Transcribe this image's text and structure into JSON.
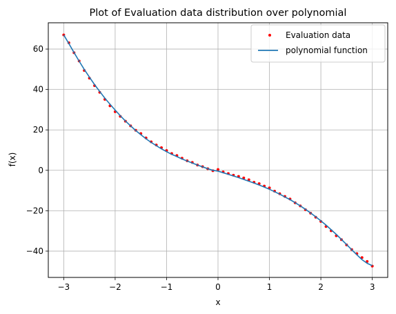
{
  "chart_data": {
    "type": "scatter",
    "title": "Plot of Evaluation data distribution over polynomial",
    "xlabel": "x",
    "ylabel": "f(x)",
    "xlim": [
      -3.3,
      3.3
    ],
    "ylim": [
      -53,
      73
    ],
    "xticks": [
      -3,
      -2,
      -1,
      0,
      1,
      2,
      3
    ],
    "xtick_labels": [
      "−3",
      "−2",
      "−1",
      "0",
      "1",
      "2",
      "3"
    ],
    "yticks": [
      -40,
      -20,
      0,
      20,
      40,
      60
    ],
    "ytick_labels": [
      "−40",
      "−20",
      "0",
      "20",
      "40",
      "60"
    ],
    "grid": true,
    "legend_position": "top-right",
    "series": [
      {
        "name": "Evaluation data",
        "kind": "scatter",
        "color": "#ff0000",
        "x": [
          -3.0,
          -2.9,
          -2.8,
          -2.7,
          -2.6,
          -2.5,
          -2.4,
          -2.3,
          -2.2,
          -2.1,
          -2.0,
          -1.9,
          -1.8,
          -1.7,
          -1.6,
          -1.5,
          -1.4,
          -1.3,
          -1.2,
          -1.1,
          -1.0,
          -0.9,
          -0.8,
          -0.7,
          -0.6,
          -0.5,
          -0.4,
          -0.3,
          -0.2,
          -0.1,
          0.0,
          0.1,
          0.2,
          0.3,
          0.4,
          0.5,
          0.6,
          0.7,
          0.8,
          0.9,
          1.0,
          1.1,
          1.2,
          1.3,
          1.4,
          1.5,
          1.6,
          1.7,
          1.8,
          1.9,
          2.0,
          2.1,
          2.2,
          2.3,
          2.4,
          2.5,
          2.6,
          2.7,
          2.8,
          2.9,
          3.0
        ],
        "y": [
          67.0,
          63.1,
          58.2,
          54.1,
          49.4,
          45.6,
          41.9,
          38.6,
          35.1,
          31.9,
          29.0,
          26.7,
          24.3,
          22.0,
          19.8,
          18.2,
          16.0,
          14.1,
          12.5,
          11.2,
          9.8,
          8.3,
          7.3,
          6.0,
          4.7,
          3.9,
          2.6,
          1.8,
          0.8,
          -0.2,
          0.4,
          -0.8,
          -1.6,
          -2.4,
          -3.0,
          -3.8,
          -4.7,
          -5.9,
          -6.6,
          -7.8,
          -8.7,
          -10.3,
          -11.6,
          -12.9,
          -14.2,
          -16.1,
          -17.6,
          -19.5,
          -21.2,
          -23.2,
          -25.3,
          -27.8,
          -29.9,
          -32.4,
          -34.3,
          -36.9,
          -39.2,
          -41.2,
          -43.2,
          -45.1,
          -47.4
        ]
      },
      {
        "name": "polynomial function",
        "kind": "line",
        "color": "#1f77b4",
        "x": [
          -3.0,
          -2.9,
          -2.8,
          -2.7,
          -2.6,
          -2.5,
          -2.4,
          -2.3,
          -2.2,
          -2.1,
          -2.0,
          -1.9,
          -1.8,
          -1.7,
          -1.6,
          -1.5,
          -1.4,
          -1.3,
          -1.2,
          -1.1,
          -1.0,
          -0.9,
          -0.8,
          -0.7,
          -0.6,
          -0.5,
          -0.4,
          -0.3,
          -0.2,
          -0.1,
          0.0,
          0.1,
          0.2,
          0.3,
          0.4,
          0.5,
          0.6,
          0.7,
          0.8,
          0.9,
          1.0,
          1.1,
          1.2,
          1.3,
          1.4,
          1.5,
          1.6,
          1.7,
          1.8,
          1.9,
          2.0,
          2.1,
          2.2,
          2.3,
          2.4,
          2.5,
          2.6,
          2.7,
          2.8,
          2.9,
          3.0
        ],
        "y": [
          67.0,
          62.7,
          58.3,
          54.0,
          49.9,
          46.1,
          42.4,
          39.0,
          35.7,
          32.7,
          29.8,
          27.0,
          24.4,
          22.0,
          19.7,
          17.6,
          15.6,
          13.8,
          12.2,
          10.6,
          9.2,
          7.9,
          6.8,
          5.6,
          4.6,
          3.6,
          2.6,
          1.7,
          0.8,
          0.0,
          -0.4,
          -1.2,
          -2.0,
          -2.8,
          -3.6,
          -4.5,
          -5.4,
          -6.3,
          -7.3,
          -8.3,
          -9.4,
          -10.6,
          -11.8,
          -13.2,
          -14.5,
          -16.0,
          -17.6,
          -19.3,
          -21.1,
          -23.0,
          -25.0,
          -27.1,
          -29.4,
          -31.7,
          -34.2,
          -36.7,
          -39.3,
          -41.8,
          -44.2,
          -46.0,
          -47.2
        ]
      }
    ]
  }
}
